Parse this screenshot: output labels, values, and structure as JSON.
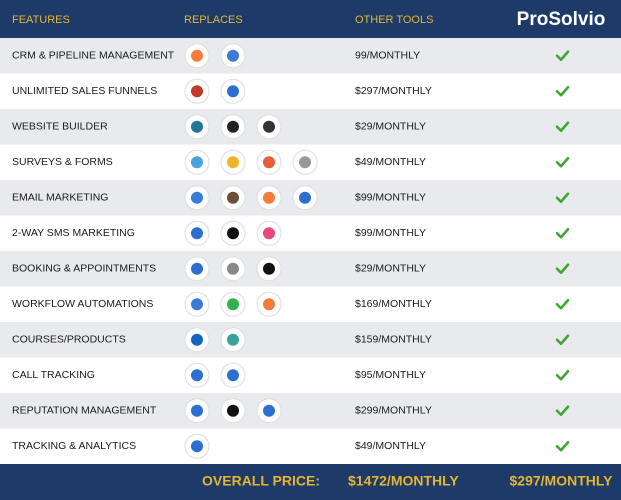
{
  "header": {
    "features": "FEATURES",
    "replaces": "REPLACES",
    "other_tools": "OTHER TOOLS",
    "brand": "ProSolvio"
  },
  "rows": [
    {
      "feature": "CRM & PIPELINE MANAGEMENT",
      "price": "99/MONTHLY"
    },
    {
      "feature": "UNLIMITED SALES FUNNELS",
      "price": "$297/MONTHLY"
    },
    {
      "feature": "WEBSITE BUILDER",
      "price": "$29/MONTHLY"
    },
    {
      "feature": "SURVEYS & FORMS",
      "price": "$49/MONTHLY"
    },
    {
      "feature": "EMAIL MARKETING",
      "price": "$99/MONTHLY"
    },
    {
      "feature": "2-WAY SMS MARKETING",
      "price": "$99/MONTHLY"
    },
    {
      "feature": "BOOKING & APPOINTMENTS",
      "price": "$29/MONTHLY"
    },
    {
      "feature": "WORKFLOW AUTOMATIONS",
      "price": "$169/MONTHLY"
    },
    {
      "feature": "COURSES/PRODUCTS",
      "price": "$159/MONTHLY"
    },
    {
      "feature": "CALL TRACKING",
      "price": "$95/MONTHLY"
    },
    {
      "feature": "REPUTATION MANAGEMENT",
      "price": "$299/MONTHLY"
    },
    {
      "feature": "TRACKING & ANALYTICS",
      "price": "$49/MONTHLY"
    }
  ],
  "footer": {
    "label": "OVERALL PRICE:",
    "total": "$1472/MONTHLY",
    "brand_price": "$297/MONTHLY"
  }
}
